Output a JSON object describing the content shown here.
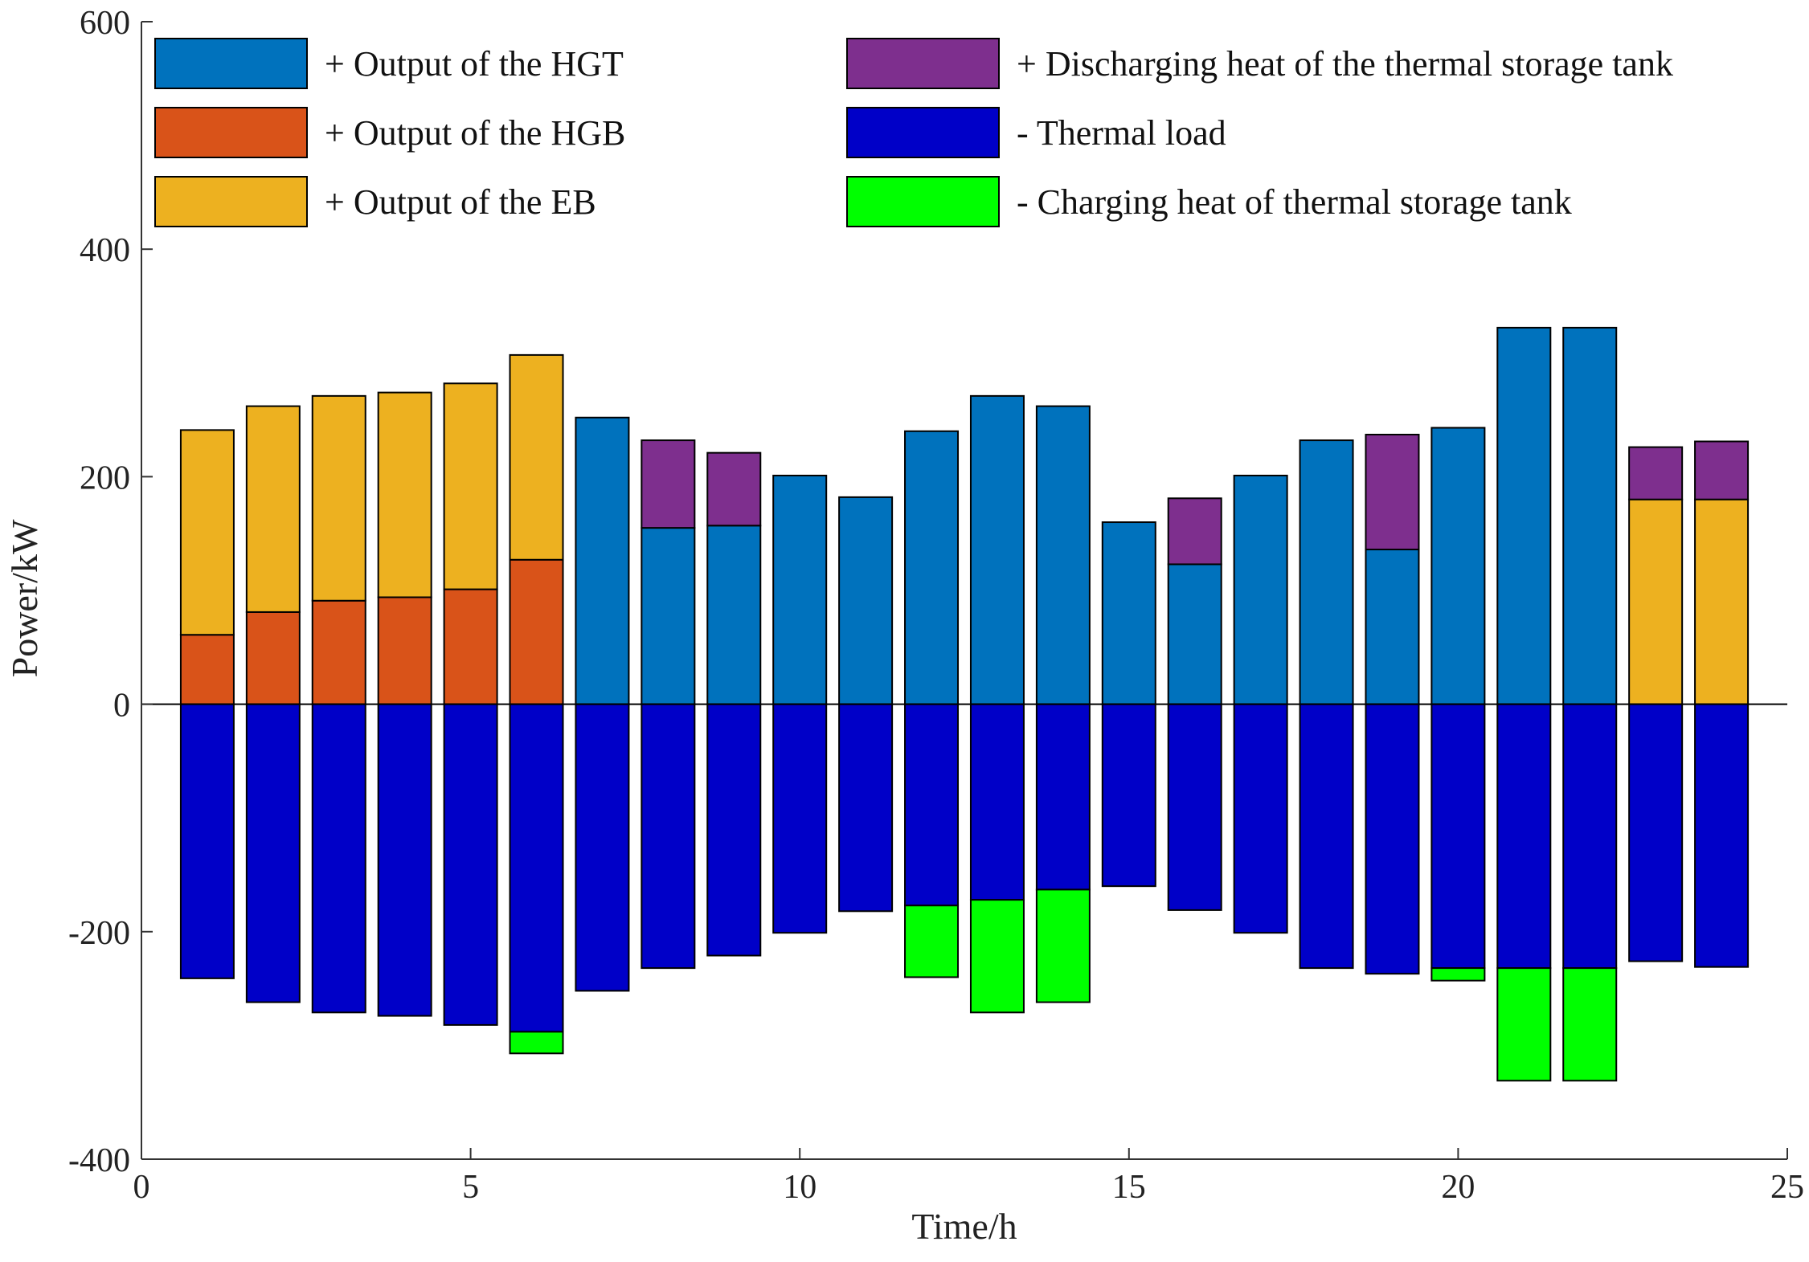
{
  "chart_data": {
    "type": "bar",
    "stacked": true,
    "title": "",
    "xlabel": "Time/h",
    "ylabel": "Power/kW",
    "xlim": [
      0,
      25
    ],
    "ylim": [
      -400,
      600
    ],
    "xticks": [
      0,
      5,
      10,
      15,
      20,
      25
    ],
    "yticks": [
      -400,
      -200,
      0,
      200,
      400,
      600
    ],
    "x": [
      1,
      2,
      3,
      4,
      5,
      6,
      7,
      8,
      9,
      10,
      11,
      12,
      13,
      14,
      15,
      16,
      17,
      18,
      19,
      20,
      21,
      22,
      23,
      24
    ],
    "series": [
      {
        "name": "+ Output of the HGT",
        "color": "#0072BD",
        "values": [
          0,
          0,
          0,
          0,
          0,
          0,
          252,
          155,
          157,
          201,
          182,
          240,
          271,
          262,
          160,
          123,
          201,
          232,
          136,
          243,
          331,
          331,
          0,
          0
        ]
      },
      {
        "name": "+ Output of the HGB",
        "color": "#D95319",
        "values": [
          61,
          81,
          91,
          94,
          101,
          127,
          0,
          0,
          0,
          0,
          0,
          0,
          0,
          0,
          0,
          0,
          0,
          0,
          0,
          0,
          0,
          0,
          0,
          0
        ]
      },
      {
        "name": "+ Output of the EB",
        "color": "#EDB120",
        "values": [
          180,
          181,
          180,
          180,
          181,
          180,
          0,
          0,
          0,
          0,
          0,
          0,
          0,
          0,
          0,
          0,
          0,
          0,
          0,
          0,
          0,
          0,
          180,
          180
        ]
      },
      {
        "name": "+ Discharging heat of the thermal storage tank",
        "color": "#7E2F8E",
        "values": [
          0,
          0,
          0,
          0,
          0,
          0,
          0,
          77,
          64,
          0,
          0,
          0,
          0,
          0,
          0,
          58,
          0,
          0,
          101,
          0,
          0,
          0,
          46,
          51
        ]
      },
      {
        "name": "- Thermal load",
        "color": "#0000C8",
        "values": [
          -241,
          -262,
          -271,
          -274,
          -282,
          -288,
          -252,
          -232,
          -221,
          -201,
          -182,
          -177,
          -172,
          -163,
          -160,
          -181,
          -201,
          -232,
          -237,
          -232,
          -232,
          -232,
          -226,
          -231
        ]
      },
      {
        "name": "- Charging heat of thermal storage tank",
        "color": "#00FF00",
        "values": [
          0,
          0,
          0,
          0,
          0,
          -19,
          0,
          0,
          0,
          0,
          0,
          -63,
          -99,
          -99,
          0,
          0,
          0,
          0,
          0,
          -11,
          -99,
          -99,
          0,
          0
        ]
      }
    ],
    "legend_position": "top",
    "grid": false
  }
}
